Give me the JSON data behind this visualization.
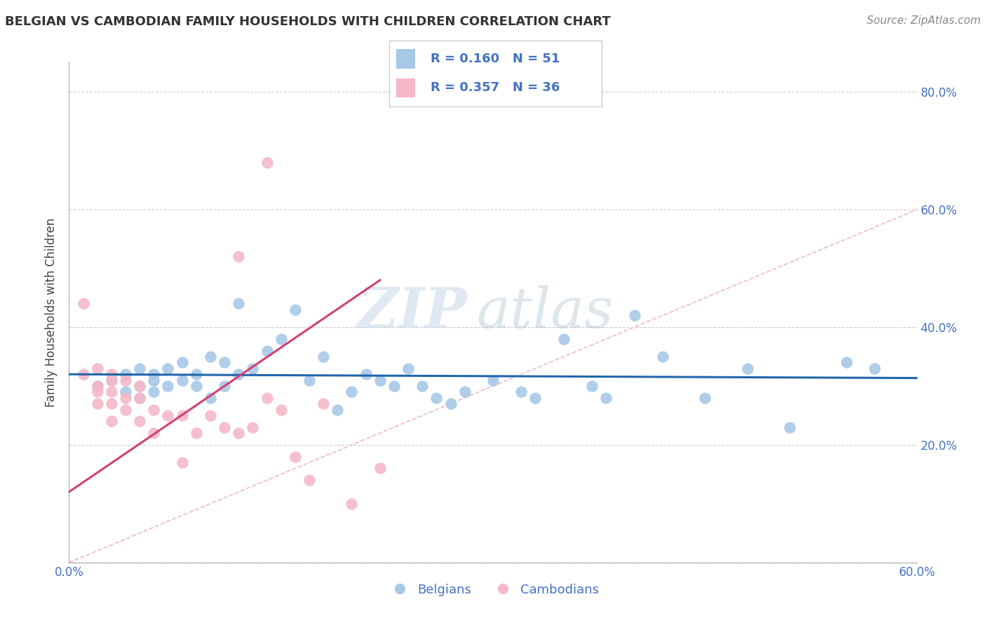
{
  "title": "BELGIAN VS CAMBODIAN FAMILY HOUSEHOLDS WITH CHILDREN CORRELATION CHART",
  "source": "Source: ZipAtlas.com",
  "ylabel": "Family Households with Children",
  "xlim": [
    0.0,
    0.6
  ],
  "ylim": [
    0.0,
    0.85
  ],
  "x_ticks": [
    0.0,
    0.1,
    0.2,
    0.3,
    0.4,
    0.5,
    0.6
  ],
  "y_ticks": [
    0.0,
    0.2,
    0.4,
    0.6,
    0.8
  ],
  "y_tick_labels_right": [
    "",
    "20.0%",
    "40.0%",
    "60.0%",
    "80.0%"
  ],
  "legend_blue_r": "R = 0.160",
  "legend_blue_n": "N = 51",
  "legend_pink_r": "R = 0.357",
  "legend_pink_n": "N = 36",
  "color_blue": "#a8c8e8",
  "color_blue_line": "#2166ac",
  "color_pink": "#f4b8c8",
  "color_pink_line": "#d44070",
  "color_diag": "#f0b8c8",
  "watermark_zip": "ZIP",
  "watermark_atlas": "atlas",
  "background": "#ffffff",
  "blue_scatter_x": [
    0.02,
    0.03,
    0.04,
    0.04,
    0.05,
    0.05,
    0.05,
    0.06,
    0.06,
    0.06,
    0.07,
    0.07,
    0.08,
    0.08,
    0.09,
    0.09,
    0.1,
    0.1,
    0.11,
    0.11,
    0.12,
    0.12,
    0.13,
    0.14,
    0.15,
    0.16,
    0.17,
    0.18,
    0.19,
    0.2,
    0.21,
    0.22,
    0.23,
    0.24,
    0.25,
    0.26,
    0.27,
    0.28,
    0.3,
    0.32,
    0.33,
    0.35,
    0.37,
    0.38,
    0.4,
    0.42,
    0.45,
    0.48,
    0.51,
    0.55,
    0.57
  ],
  "blue_scatter_y": [
    0.3,
    0.31,
    0.29,
    0.32,
    0.3,
    0.33,
    0.28,
    0.31,
    0.29,
    0.32,
    0.33,
    0.3,
    0.34,
    0.31,
    0.32,
    0.3,
    0.35,
    0.28,
    0.34,
    0.3,
    0.32,
    0.44,
    0.33,
    0.36,
    0.38,
    0.43,
    0.31,
    0.35,
    0.26,
    0.29,
    0.32,
    0.31,
    0.3,
    0.33,
    0.3,
    0.28,
    0.27,
    0.29,
    0.31,
    0.29,
    0.28,
    0.38,
    0.3,
    0.28,
    0.42,
    0.35,
    0.28,
    0.33,
    0.23,
    0.34,
    0.33
  ],
  "pink_scatter_x": [
    0.01,
    0.01,
    0.02,
    0.02,
    0.02,
    0.02,
    0.03,
    0.03,
    0.03,
    0.03,
    0.03,
    0.04,
    0.04,
    0.04,
    0.05,
    0.05,
    0.05,
    0.06,
    0.06,
    0.07,
    0.08,
    0.08,
    0.09,
    0.1,
    0.11,
    0.12,
    0.13,
    0.14,
    0.15,
    0.16,
    0.17,
    0.18,
    0.2,
    0.22,
    0.12,
    0.14
  ],
  "pink_scatter_y": [
    0.44,
    0.32,
    0.33,
    0.29,
    0.27,
    0.3,
    0.32,
    0.29,
    0.27,
    0.24,
    0.31,
    0.28,
    0.31,
    0.26,
    0.3,
    0.28,
    0.24,
    0.26,
    0.22,
    0.25,
    0.25,
    0.17,
    0.22,
    0.25,
    0.23,
    0.22,
    0.23,
    0.28,
    0.26,
    0.18,
    0.14,
    0.27,
    0.1,
    0.16,
    0.52,
    0.68
  ],
  "pink_trend_x": [
    0.0,
    0.22
  ],
  "pink_trend_y": [
    0.12,
    0.48
  ]
}
